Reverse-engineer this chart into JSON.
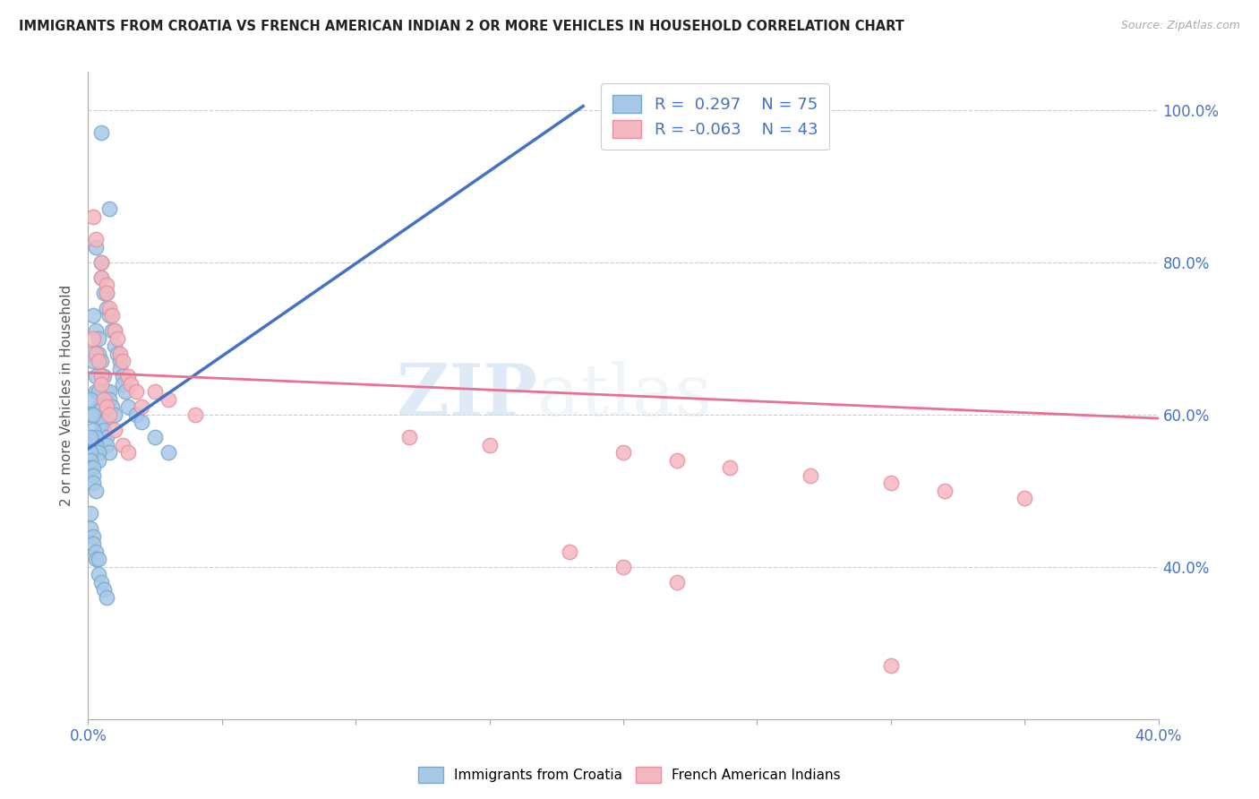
{
  "title": "IMMIGRANTS FROM CROATIA VS FRENCH AMERICAN INDIAN 2 OR MORE VEHICLES IN HOUSEHOLD CORRELATION CHART",
  "source": "Source: ZipAtlas.com",
  "ylabel": "2 or more Vehicles in Household",
  "xlim": [
    0.0,
    0.4
  ],
  "ylim": [
    0.2,
    1.05
  ],
  "xticks": [
    0.0,
    0.05,
    0.1,
    0.15,
    0.2,
    0.25,
    0.3,
    0.35,
    0.4
  ],
  "xticklabels": [
    "0.0%",
    "",
    "",
    "",
    "",
    "",
    "",
    "",
    "40.0%"
  ],
  "yticks": [
    0.4,
    0.6,
    0.8,
    1.0
  ],
  "yticklabels": [
    "40.0%",
    "60.0%",
    "80.0%",
    "100.0%"
  ],
  "color_blue": "#a8c8e8",
  "color_blue_edge": "#7aaac8",
  "color_pink": "#f4b8c0",
  "color_pink_edge": "#e890a0",
  "color_blue_line": "#4472c4",
  "color_pink_line": "#e87090",
  "watermark_zip": "ZIP",
  "watermark_atlas": "atlas",
  "blue_x": [
    0.005,
    0.008,
    0.003,
    0.005,
    0.005,
    0.006,
    0.007,
    0.007,
    0.008,
    0.009,
    0.01,
    0.01,
    0.011,
    0.012,
    0.012,
    0.013,
    0.013,
    0.014,
    0.002,
    0.003,
    0.004,
    0.004,
    0.005,
    0.005,
    0.006,
    0.007,
    0.008,
    0.008,
    0.009,
    0.01,
    0.001,
    0.002,
    0.003,
    0.003,
    0.004,
    0.004,
    0.005,
    0.005,
    0.006,
    0.006,
    0.007,
    0.007,
    0.008,
    0.001,
    0.001,
    0.002,
    0.002,
    0.003,
    0.003,
    0.004,
    0.004,
    0.001,
    0.001,
    0.001,
    0.001,
    0.002,
    0.002,
    0.002,
    0.003,
    0.015,
    0.018,
    0.02,
    0.025,
    0.03,
    0.001,
    0.001,
    0.002,
    0.002,
    0.003,
    0.003,
    0.004,
    0.004,
    0.005,
    0.006,
    0.007
  ],
  "blue_y": [
    0.97,
    0.87,
    0.82,
    0.8,
    0.78,
    0.76,
    0.76,
    0.74,
    0.73,
    0.71,
    0.71,
    0.69,
    0.68,
    0.67,
    0.66,
    0.65,
    0.64,
    0.63,
    0.73,
    0.71,
    0.7,
    0.68,
    0.67,
    0.65,
    0.65,
    0.63,
    0.63,
    0.62,
    0.61,
    0.6,
    0.68,
    0.67,
    0.65,
    0.63,
    0.63,
    0.61,
    0.61,
    0.59,
    0.59,
    0.58,
    0.57,
    0.56,
    0.55,
    0.62,
    0.6,
    0.6,
    0.58,
    0.57,
    0.56,
    0.55,
    0.54,
    0.57,
    0.55,
    0.54,
    0.53,
    0.53,
    0.52,
    0.51,
    0.5,
    0.61,
    0.6,
    0.59,
    0.57,
    0.55,
    0.47,
    0.45,
    0.44,
    0.43,
    0.42,
    0.41,
    0.41,
    0.39,
    0.38,
    0.37,
    0.36
  ],
  "pink_x": [
    0.002,
    0.003,
    0.005,
    0.005,
    0.007,
    0.007,
    0.008,
    0.009,
    0.01,
    0.011,
    0.012,
    0.013,
    0.015,
    0.016,
    0.018,
    0.02,
    0.002,
    0.003,
    0.004,
    0.005,
    0.005,
    0.006,
    0.007,
    0.008,
    0.01,
    0.013,
    0.015,
    0.025,
    0.03,
    0.04,
    0.12,
    0.15,
    0.2,
    0.22,
    0.24,
    0.27,
    0.3,
    0.32,
    0.35,
    0.18,
    0.2,
    0.22,
    0.3
  ],
  "pink_y": [
    0.86,
    0.83,
    0.8,
    0.78,
    0.77,
    0.76,
    0.74,
    0.73,
    0.71,
    0.7,
    0.68,
    0.67,
    0.65,
    0.64,
    0.63,
    0.61,
    0.7,
    0.68,
    0.67,
    0.65,
    0.64,
    0.62,
    0.61,
    0.6,
    0.58,
    0.56,
    0.55,
    0.63,
    0.62,
    0.6,
    0.57,
    0.56,
    0.55,
    0.54,
    0.53,
    0.52,
    0.51,
    0.5,
    0.49,
    0.42,
    0.4,
    0.38,
    0.27
  ],
  "blue_trend_x": [
    0.0,
    0.185
  ],
  "blue_trend_y": [
    0.555,
    1.005
  ],
  "pink_trend_x": [
    0.0,
    0.4
  ],
  "pink_trend_y": [
    0.655,
    0.595
  ]
}
